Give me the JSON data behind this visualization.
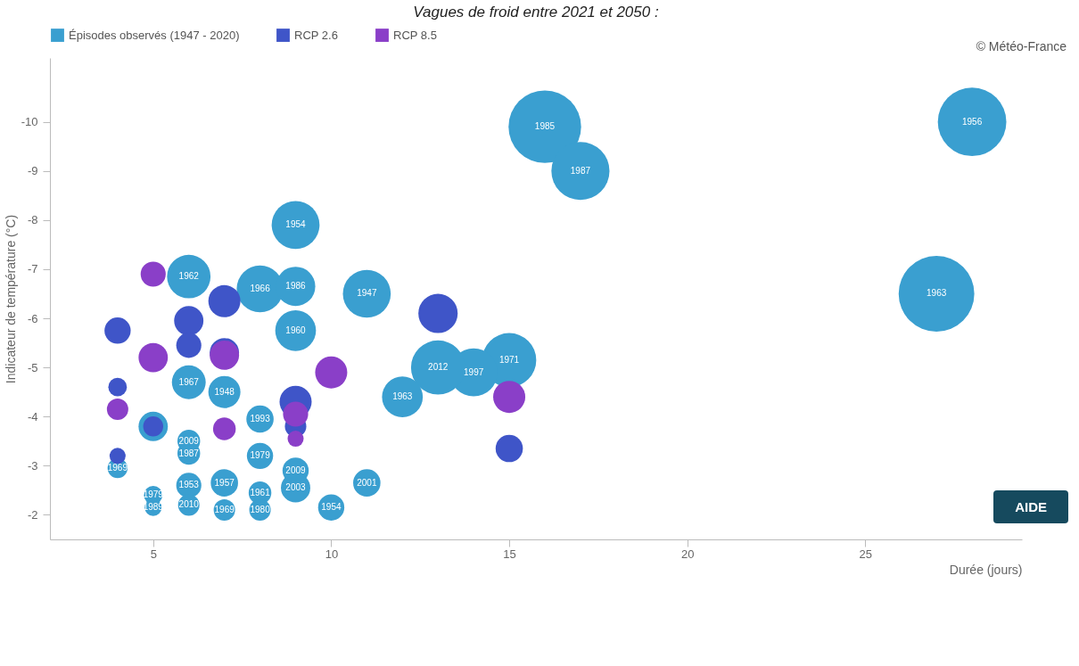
{
  "chart_data": {
    "type": "bubble",
    "title": "Vagues de froid entre 2021 et 2050 :",
    "xlabel": "Durée (jours)",
    "ylabel": "Indicateur de température (°C)",
    "xlim": [
      2.1,
      29.4
    ],
    "ylim": [
      -1.5,
      -11.3
    ],
    "xticks": [
      5,
      10,
      15,
      20,
      25
    ],
    "yticks": [
      -10,
      -9,
      -8,
      -7,
      -6,
      -5,
      -4,
      -3,
      -2
    ],
    "grid": false,
    "legend": "top left",
    "annotations": [
      "© Météo-France",
      "AIDE",
      {
        "text": "1985",
        "x": 16,
        "y": -9.9
      },
      {
        "text": "1956",
        "x": 28,
        "y": -10.0
      },
      {
        "text": "1987",
        "x": 17,
        "y": -9.0
      },
      {
        "text": "1963",
        "x": 27,
        "y": -6.5
      },
      {
        "text": "1954",
        "x": 9,
        "y": -7.9
      },
      {
        "text": "1962",
        "x": 6,
        "y": -6.85
      },
      {
        "text": "1966",
        "x": 8,
        "y": -6.6
      },
      {
        "text": "1986",
        "x": 9,
        "y": -6.65
      },
      {
        "text": "1947",
        "x": 11,
        "y": -6.5
      },
      {
        "text": "1960",
        "x": 9,
        "y": -5.75
      },
      {
        "text": "1971",
        "x": 15,
        "y": -5.15
      },
      {
        "text": "1997",
        "x": 14,
        "y": -4.9
      },
      {
        "text": "2012",
        "x": 13,
        "y": -5.0
      },
      {
        "text": "1963",
        "x": 12,
        "y": -4.4
      },
      {
        "text": "1967",
        "x": 6,
        "y": -4.7
      },
      {
        "text": "1948",
        "x": 7,
        "y": -4.5
      },
      {
        "text": "1993",
        "x": 8,
        "y": -3.95
      },
      {
        "text": "2009",
        "x": 6,
        "y": -3.5
      },
      {
        "text": "1987",
        "x": 6,
        "y": -3.25
      },
      {
        "text": "1979",
        "x": 8,
        "y": -3.2
      },
      {
        "text": "1969",
        "x": 4,
        "y": -2.95
      },
      {
        "text": "2009",
        "x": 9,
        "y": -2.9
      },
      {
        "text": "2003",
        "x": 9,
        "y": -2.55
      },
      {
        "text": "2001",
        "x": 11,
        "y": -2.65
      },
      {
        "text": "1957",
        "x": 7,
        "y": -2.65
      },
      {
        "text": "1953",
        "x": 6,
        "y": -2.6
      },
      {
        "text": "1979",
        "x": 5,
        "y": -2.4
      },
      {
        "text": "1961",
        "x": 8,
        "y": -2.45
      },
      {
        "text": "1989",
        "x": 5,
        "y": -2.15
      },
      {
        "text": "2010",
        "x": 6,
        "y": -2.2
      },
      {
        "text": "1969",
        "x": 7,
        "y": -2.1
      },
      {
        "text": "1980",
        "x": 8,
        "y": -2.1
      },
      {
        "text": "1954",
        "x": 10,
        "y": -2.15
      }
    ],
    "series": [
      {
        "name": "Épisodes observés (1947 - 2020)",
        "color": "#3a9fd0",
        "x": [
          16,
          28,
          17,
          27,
          9,
          6,
          8,
          9,
          11,
          9,
          15,
          14,
          13,
          12,
          6,
          7,
          5,
          8,
          6,
          6,
          8,
          4,
          9,
          9,
          11,
          7,
          6,
          5,
          8,
          5,
          6,
          7,
          8,
          10
        ],
        "values": [
          -9.9,
          -10.0,
          -9.0,
          -6.5,
          -7.9,
          -6.85,
          -6.6,
          -6.65,
          -6.5,
          -5.75,
          -5.15,
          -4.9,
          -5.0,
          -4.4,
          -4.7,
          -4.5,
          -3.8,
          -3.95,
          -3.5,
          -3.25,
          -3.2,
          -2.95,
          -2.9,
          -2.55,
          -2.65,
          -2.65,
          -2.6,
          -2.4,
          -2.45,
          -2.15,
          -2.2,
          -2.1,
          -2.1,
          -2.15
        ],
        "sizes": [
          0.92,
          0.82,
          0.59,
          1,
          0.4,
          0.33,
          0.38,
          0.27,
          0.4,
          0.29,
          0.51,
          0.4,
          0.51,
          0.29,
          0.2,
          0.18,
          0.15,
          0.13,
          0.09,
          0.09,
          0.12,
          0.07,
          0.12,
          0.15,
          0.13,
          0.13,
          0.11,
          0.06,
          0.09,
          0.05,
          0.08,
          0.08,
          0.08,
          0.12
        ]
      },
      {
        "name": "RCP 2.6",
        "color": "#3f55c8",
        "x": [
          4,
          6,
          6,
          7,
          7,
          13,
          4,
          5,
          4,
          9,
          9,
          15
        ],
        "values": [
          -5.75,
          -5.95,
          -5.45,
          -6.35,
          -5.3,
          -6.1,
          -4.6,
          -3.8,
          -3.2,
          -4.3,
          -3.8,
          -3.35
        ],
        "sizes": [
          0.12,
          0.15,
          0.11,
          0.18,
          0.15,
          0.27,
          0.06,
          0.07,
          0.045,
          0.18,
          0.08,
          0.13
        ]
      },
      {
        "name": "RCP 8.5",
        "color": "#8a3fc8",
        "x": [
          5,
          5,
          7,
          4,
          7,
          9,
          9,
          10,
          15
        ],
        "values": [
          -6.9,
          -5.2,
          -5.25,
          -4.15,
          -3.75,
          -4.05,
          -3.55,
          -4.9,
          -4.4
        ],
        "sizes": [
          0.11,
          0.15,
          0.15,
          0.08,
          0.09,
          0.11,
          0.045,
          0.18,
          0.18
        ]
      }
    ]
  }
}
